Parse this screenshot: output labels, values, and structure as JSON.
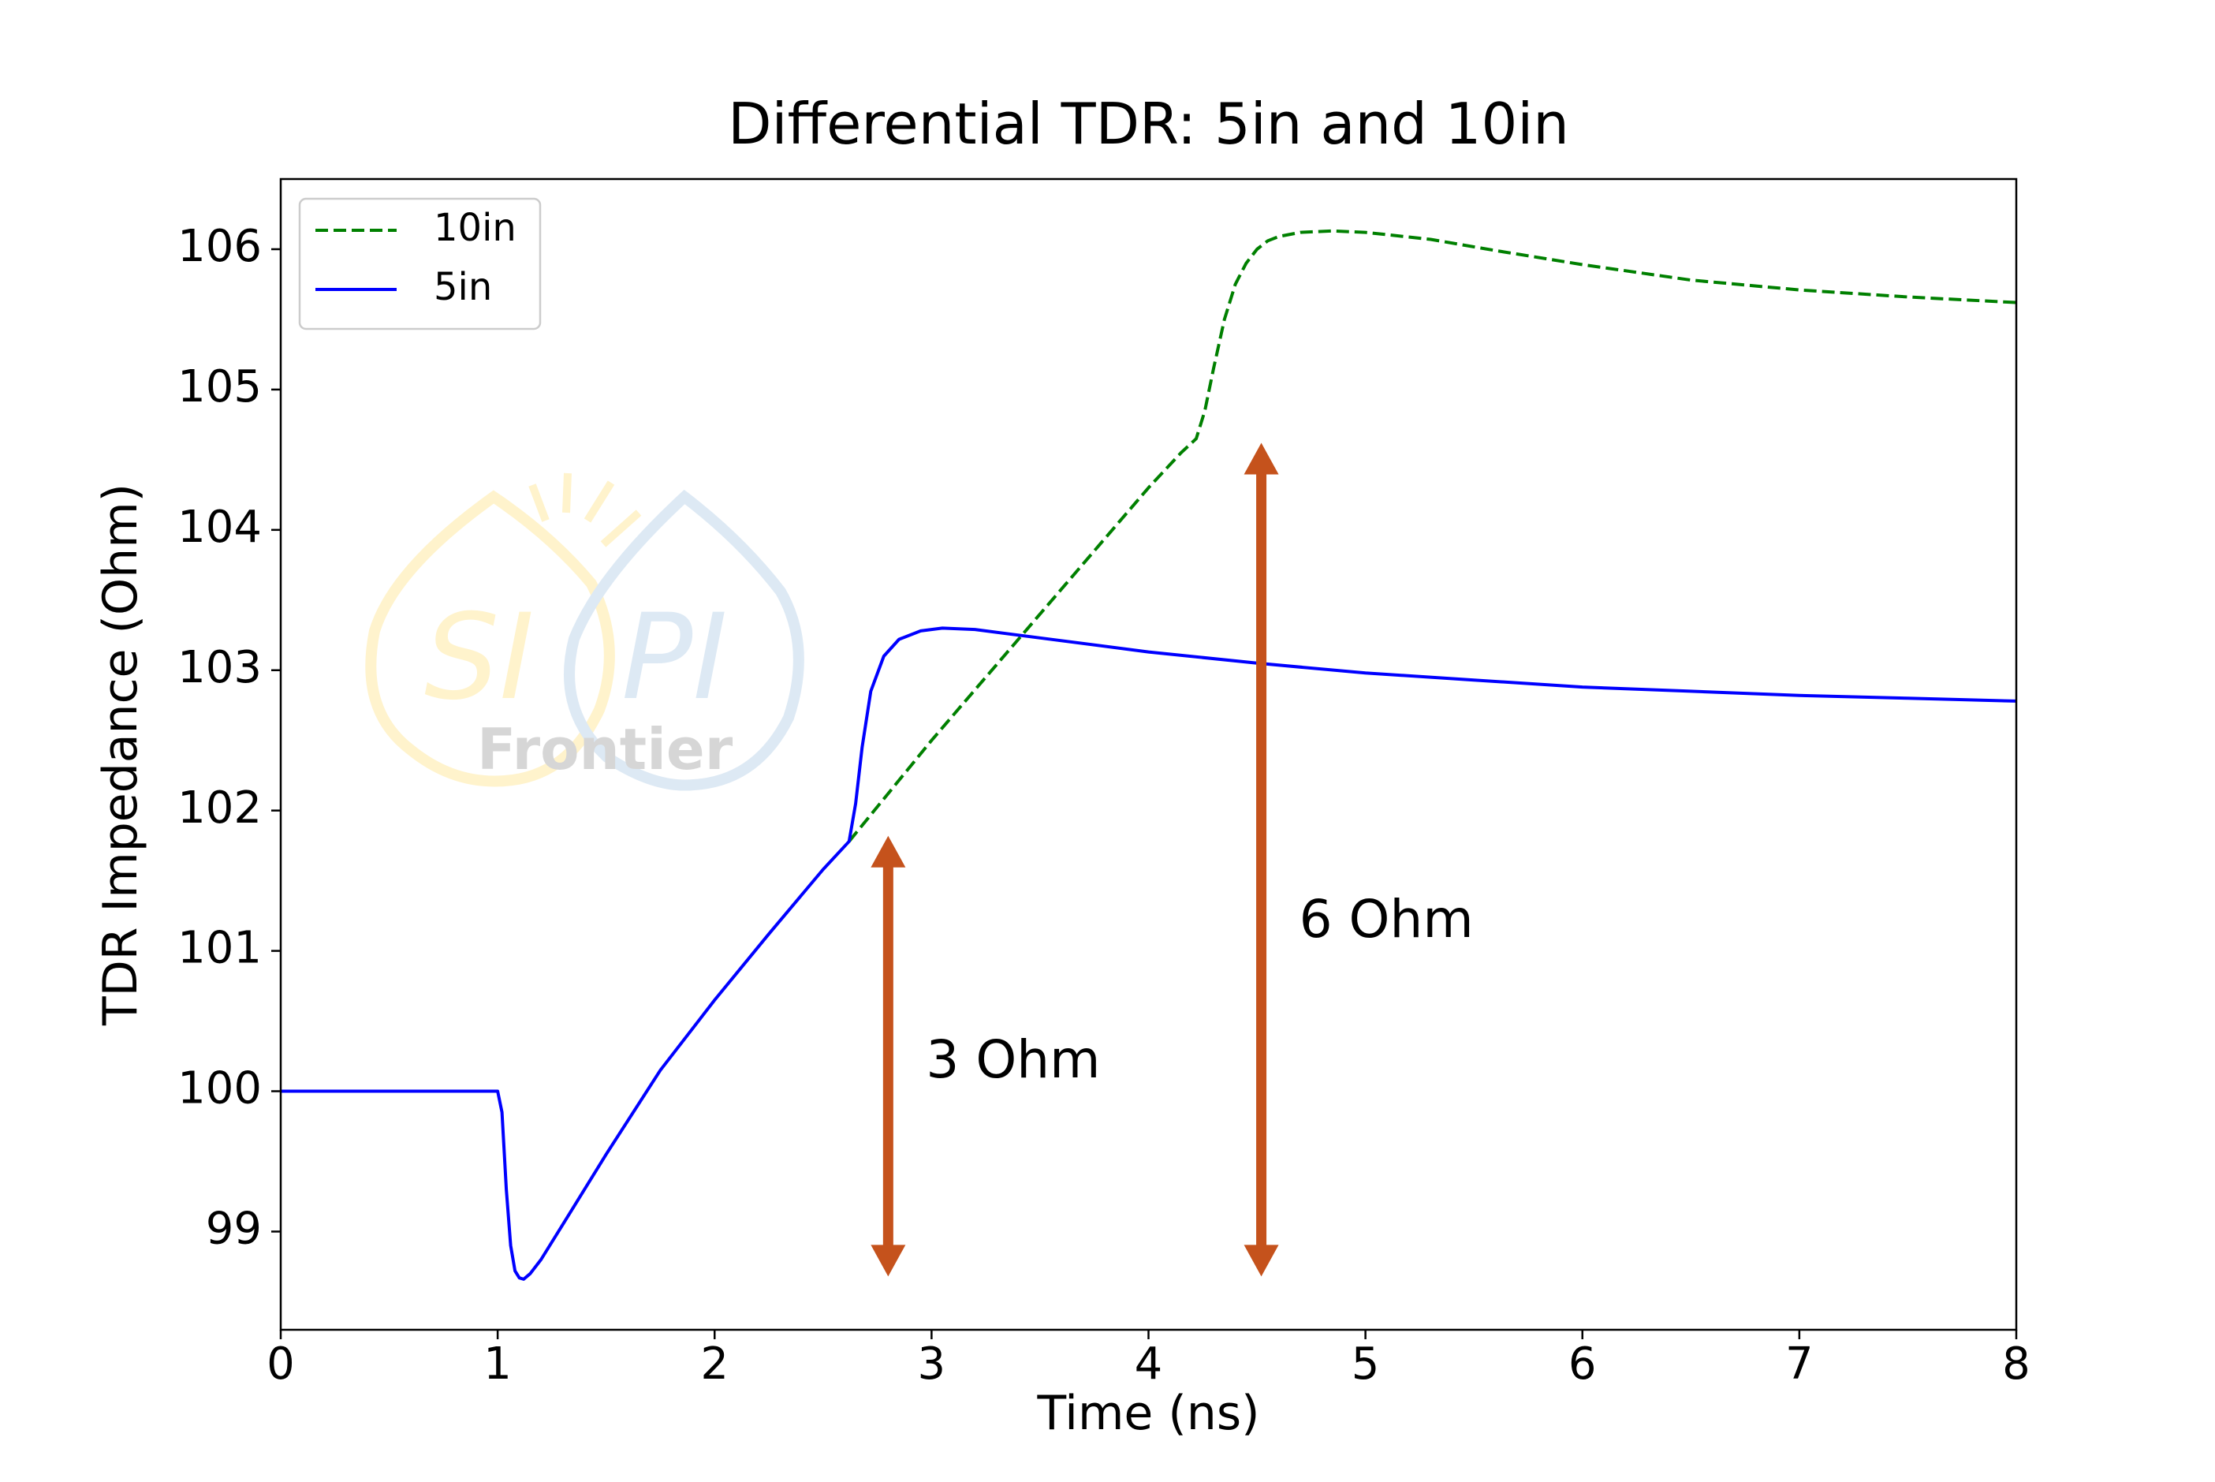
{
  "chart_data": {
    "type": "line",
    "title": "Differential TDR: 5in and 10in",
    "xlabel": "Time (ns)",
    "ylabel": "TDR Impedance (Ohm)",
    "xlim": [
      0,
      8
    ],
    "ylim": [
      98.3,
      106.5
    ],
    "xticks": [
      0,
      1,
      2,
      3,
      4,
      5,
      6,
      7,
      8
    ],
    "xtick_labels": [
      "0",
      "1",
      "2",
      "3",
      "4",
      "5",
      "6",
      "7",
      "8"
    ],
    "yticks": [
      99,
      100,
      101,
      102,
      103,
      104,
      105,
      106
    ],
    "ytick_labels": [
      "99",
      "100",
      "101",
      "102",
      "103",
      "104",
      "105",
      "106"
    ],
    "grid": false,
    "legend_position": "top-left",
    "series": [
      {
        "name": "10in",
        "color": "#008000",
        "style": "dashed",
        "x": [
          2.62,
          3.0,
          3.5,
          4.0,
          4.15,
          4.22,
          4.26,
          4.3,
          4.35,
          4.4,
          4.45,
          4.5,
          4.55,
          4.6,
          4.7,
          4.85,
          5.0,
          5.3,
          5.6,
          6.0,
          6.5,
          7.0,
          7.5,
          8.0
        ],
        "y": [
          101.78,
          102.5,
          103.4,
          104.3,
          104.55,
          104.65,
          104.85,
          105.15,
          105.5,
          105.75,
          105.9,
          106.0,
          106.06,
          106.09,
          106.12,
          106.13,
          106.12,
          106.07,
          105.99,
          105.89,
          105.78,
          105.71,
          105.66,
          105.62
        ]
      },
      {
        "name": "5in",
        "color": "#0000ff",
        "style": "solid",
        "x": [
          0,
          0.5,
          1.0,
          1.02,
          1.04,
          1.06,
          1.08,
          1.1,
          1.12,
          1.15,
          1.2,
          1.3,
          1.5,
          1.75,
          2.0,
          2.25,
          2.5,
          2.62,
          2.65,
          2.68,
          2.72,
          2.78,
          2.85,
          2.95,
          3.05,
          3.2,
          3.5,
          4.0,
          4.5,
          5.0,
          5.5,
          6.0,
          6.5,
          7.0,
          7.5,
          8.0
        ],
        "y": [
          100.0,
          100.0,
          100.0,
          99.85,
          99.3,
          98.9,
          98.72,
          98.67,
          98.66,
          98.7,
          98.8,
          99.05,
          99.55,
          100.15,
          100.65,
          101.12,
          101.58,
          101.78,
          102.05,
          102.45,
          102.85,
          103.1,
          103.22,
          103.28,
          103.3,
          103.29,
          103.23,
          103.13,
          103.05,
          102.98,
          102.93,
          102.88,
          102.85,
          102.82,
          102.8,
          102.78
        ]
      }
    ],
    "annotations": [
      {
        "text": "3 Ohm",
        "arrow_x": 2.8,
        "arrow_y": [
          98.68,
          101.82
        ],
        "color": "#c5521c"
      },
      {
        "text": "6 Ohm",
        "arrow_x": 4.52,
        "arrow_y": [
          98.68,
          104.62
        ],
        "color": "#c5521c"
      }
    ],
    "watermark": {
      "text": "SI PI Frontier"
    }
  }
}
